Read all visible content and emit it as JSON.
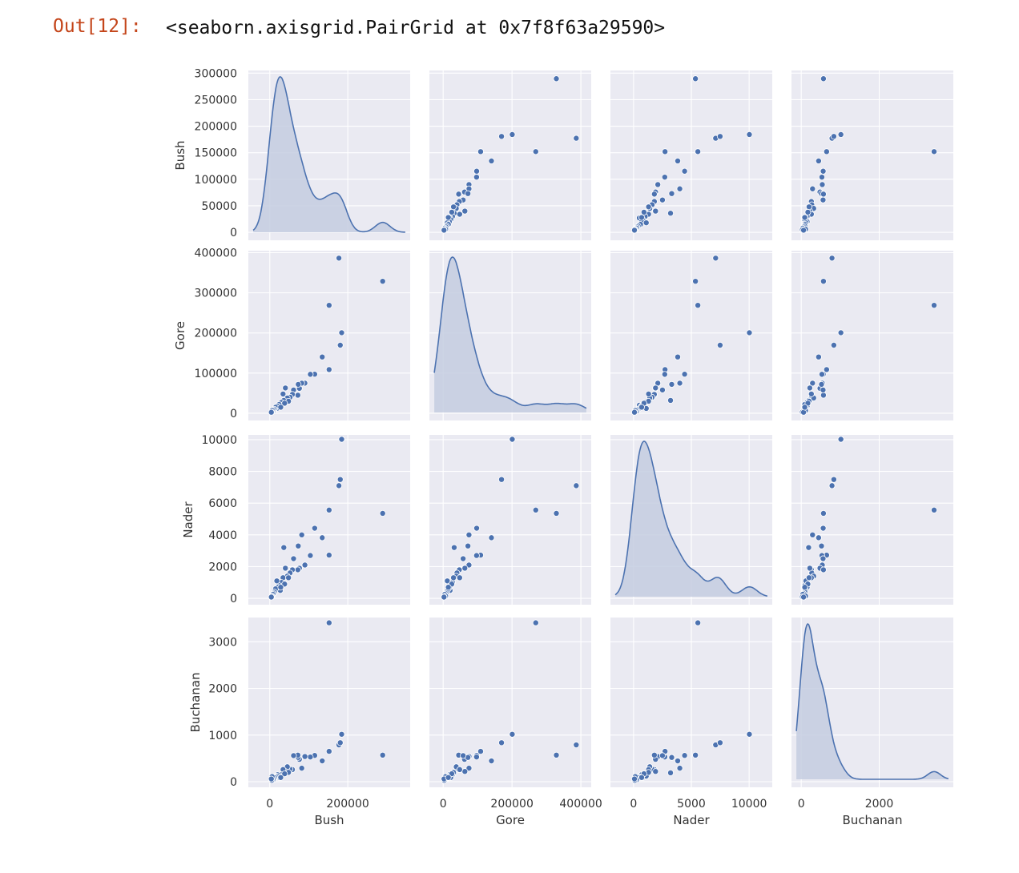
{
  "cell": {
    "prompt": "Out[12]:",
    "output_text": "<seaborn.axisgrid.PairGrid at 0x7f8f63a29590>"
  },
  "chart_data": {
    "type": "scatter",
    "subtype": "pairplot",
    "diag_kind": "kde",
    "style": "seaborn darkgrid",
    "colors": {
      "point": "#4c72b0",
      "facecolor": "#eaeaf2",
      "grid": "#ffffff",
      "kde_fill": "#c4cde0"
    },
    "variables": [
      "Bush",
      "Gore",
      "Nader",
      "Buchanan"
    ],
    "axes": {
      "Bush": {
        "lim": [
          -55000,
          360000
        ],
        "ticks": [
          0,
          200000
        ],
        "ylim": [
          -15000,
          305000
        ],
        "yticks": [
          0,
          50000,
          100000,
          150000,
          200000,
          250000,
          300000
        ]
      },
      "Gore": {
        "lim": [
          -40000,
          430000
        ],
        "ticks": [
          0,
          200000,
          400000
        ],
        "ylim": [
          -18000,
          405000
        ],
        "yticks": [
          0,
          100000,
          200000,
          300000,
          400000
        ]
      },
      "Nader": {
        "lim": [
          -2000,
          12000
        ],
        "ticks": [
          0,
          5000,
          10000
        ],
        "ylim": [
          -400,
          10300
        ],
        "yticks": [
          0,
          2000,
          4000,
          6000,
          8000,
          10000
        ]
      },
      "Buchanan": {
        "lim": [
          -250,
          3900
        ],
        "ticks": [
          0,
          2000
        ],
        "ylim": [
          -120,
          3520
        ],
        "yticks": [
          0,
          1000,
          2000,
          3000
        ]
      }
    },
    "records": [
      {
        "Bush": 289533,
        "Gore": 328808,
        "Nader": 5355,
        "Buchanan": 570
      },
      {
        "Bush": 177324,
        "Gore": 386518,
        "Nader": 7101,
        "Buchanan": 789
      },
      {
        "Bush": 184312,
        "Gore": 200657,
        "Nader": 10022,
        "Buchanan": 1017
      },
      {
        "Bush": 152098,
        "Gore": 268945,
        "Nader": 5564,
        "Buchanan": 3407
      },
      {
        "Bush": 180760,
        "Gore": 169557,
        "Nader": 7490,
        "Buchanan": 836
      },
      {
        "Bush": 152082,
        "Gore": 108850,
        "Nader": 2724,
        "Buchanan": 651
      },
      {
        "Bush": 134476,
        "Gore": 140236,
        "Nader": 3821,
        "Buchanan": 446
      },
      {
        "Bush": 115185,
        "Gore": 97318,
        "Nader": 4418,
        "Buchanan": 563
      },
      {
        "Bush": 104000,
        "Gore": 97000,
        "Nader": 2700,
        "Buchanan": 530
      },
      {
        "Bush": 90000,
        "Gore": 75000,
        "Nader": 2100,
        "Buchanan": 540
      },
      {
        "Bush": 82000,
        "Gore": 75000,
        "Nader": 4000,
        "Buchanan": 290
      },
      {
        "Bush": 76000,
        "Gore": 62000,
        "Nader": 1900,
        "Buchanan": 480
      },
      {
        "Bush": 73000,
        "Gore": 72000,
        "Nader": 3300,
        "Buchanan": 520
      },
      {
        "Bush": 72000,
        "Gore": 45000,
        "Nader": 1800,
        "Buchanan": 570
      },
      {
        "Bush": 61000,
        "Gore": 58000,
        "Nader": 2500,
        "Buchanan": 560
      },
      {
        "Bush": 58000,
        "Gore": 47000,
        "Nader": 1800,
        "Buchanan": 260
      },
      {
        "Bush": 52000,
        "Gore": 40000,
        "Nader": 1600,
        "Buchanan": 270
      },
      {
        "Bush": 45000,
        "Gore": 38000,
        "Nader": 1400,
        "Buchanan": 320
      },
      {
        "Bush": 40000,
        "Gore": 63000,
        "Nader": 1900,
        "Buchanan": 220
      },
      {
        "Bush": 36000,
        "Gore": 32000,
        "Nader": 3200,
        "Buchanan": 190
      },
      {
        "Bush": 34000,
        "Gore": 48000,
        "Nader": 1300,
        "Buchanan": 260
      },
      {
        "Bush": 30000,
        "Gore": 27000,
        "Nader": 1000,
        "Buchanan": 150
      },
      {
        "Bush": 27000,
        "Gore": 20000,
        "Nader": 500,
        "Buchanan": 110
      },
      {
        "Bush": 24000,
        "Gore": 22000,
        "Nader": 800,
        "Buchanan": 90
      },
      {
        "Bush": 20000,
        "Gore": 18000,
        "Nader": 700,
        "Buchanan": 150
      },
      {
        "Bush": 18000,
        "Gore": 12000,
        "Nader": 1100,
        "Buchanan": 120
      },
      {
        "Bush": 15000,
        "Gore": 15000,
        "Nader": 600,
        "Buchanan": 100
      },
      {
        "Bush": 12000,
        "Gore": 10000,
        "Nader": 400,
        "Buchanan": 90
      },
      {
        "Bush": 10000,
        "Gore": 8000,
        "Nader": 300,
        "Buchanan": 60
      },
      {
        "Bush": 8000,
        "Gore": 5000,
        "Nader": 250,
        "Buchanan": 40
      },
      {
        "Bush": 6000,
        "Gore": 7000,
        "Nader": 150,
        "Buchanan": 110
      },
      {
        "Bush": 5000,
        "Gore": 3000,
        "Nader": 100,
        "Buchanan": 30
      },
      {
        "Bush": 4000,
        "Gore": 2500,
        "Nader": 80,
        "Buchanan": 60
      },
      {
        "Bush": 48000,
        "Gore": 30000,
        "Nader": 1300,
        "Buchanan": 200
      },
      {
        "Bush": 38000,
        "Gore": 25000,
        "Nader": 900,
        "Buchanan": 170
      },
      {
        "Bush": 28000,
        "Gore": 15000,
        "Nader": 700,
        "Buchanan": 90
      }
    ]
  }
}
